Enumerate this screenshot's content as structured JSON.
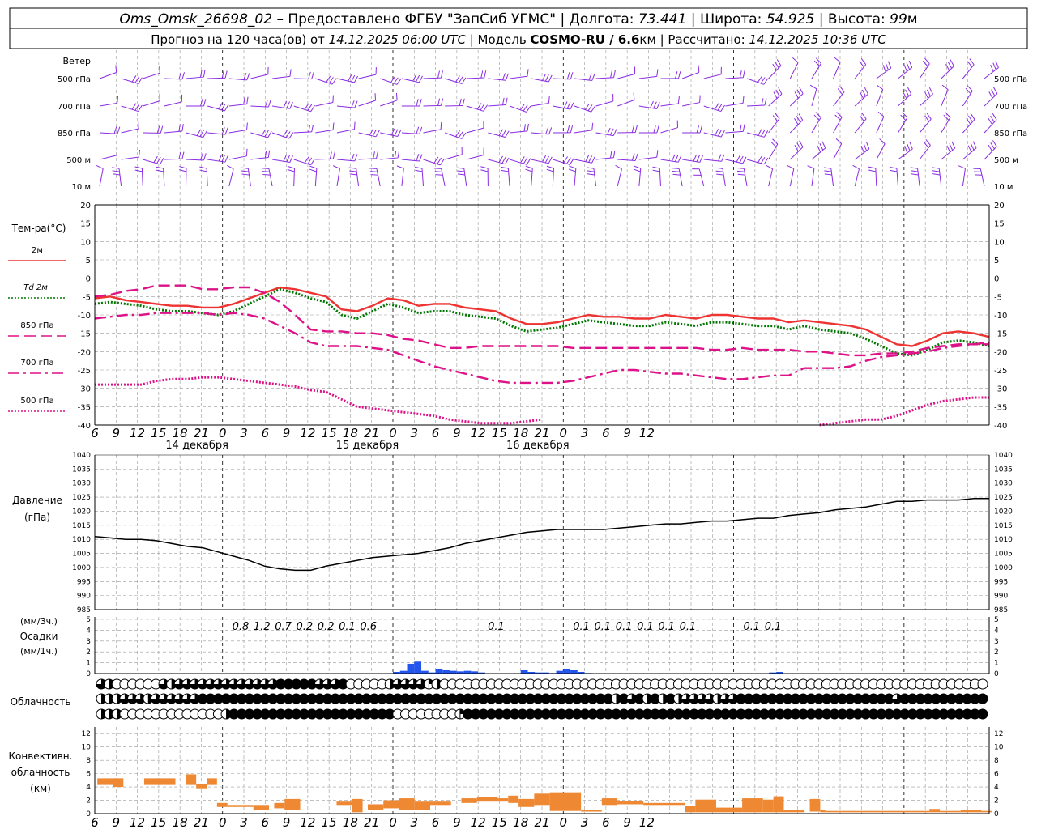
{
  "header": {
    "line1": [
      {
        "text": "Oms_Omsk_26698_02",
        "style": "italic"
      },
      {
        "text": " – Предоставлено ФГБУ \"ЗапСиб УГМС\" | Долгота: ",
        "style": "normal"
      },
      {
        "text": "73.441",
        "style": "italic"
      },
      {
        "text": " | Широта: ",
        "style": "normal"
      },
      {
        "text": "54.925",
        "style": "italic"
      },
      {
        "text": " | Высота: ",
        "style": "normal"
      },
      {
        "text": "99",
        "style": "italic"
      },
      {
        "text": "м",
        "style": "normal"
      }
    ],
    "line2": [
      {
        "text": "Прогноз на 120 часа(ов) от ",
        "style": "normal"
      },
      {
        "text": "14.12.2025 06:00 UTC",
        "style": "italic"
      },
      {
        "text": "  | Модель ",
        "style": "normal"
      },
      {
        "text": "COSMO-RU / 6.6",
        "style": "bold"
      },
      {
        "text": "км",
        "style": "normal"
      },
      {
        "text": " | Рассчитано: ",
        "style": "normal"
      },
      {
        "text": "14.12.2025 10:36 UTC",
        "style": "italic"
      }
    ]
  },
  "time_axis": {
    "hour_labels": [
      "6",
      "9",
      "12",
      "15",
      "18",
      "21",
      "0",
      "3",
      "6",
      "9",
      "12",
      "15",
      "18",
      "21",
      "0",
      "3",
      "6",
      "9",
      "12",
      "15",
      "18",
      "21",
      "0",
      "3",
      "6",
      "9",
      "12"
    ],
    "day_labels": [
      "14 декабря",
      "15 декабря",
      "16 декабря"
    ],
    "colors": {
      "grid": "#999999",
      "frame": "#000000"
    }
  },
  "wind": {
    "title": "Ветер",
    "levels": [
      "500 гПа",
      "700 гПа",
      "850 гПа",
      "500 м",
      "10 м"
    ],
    "color": "#8a2be2"
  },
  "chart_data": [
    {
      "type": "line",
      "title": "Тем-ра(°C)",
      "ylim": [
        -40,
        20
      ],
      "yticks": [
        "20",
        "15",
        "10",
        "5",
        "0",
        "-5",
        "-10",
        "-15",
        "-20",
        "-25",
        "-30",
        "-35",
        "-40"
      ],
      "series": [
        {
          "name": "2м",
          "color": "#ee3333",
          "dash": "solid",
          "values": [
            -5.5,
            -5,
            -6,
            -6.5,
            -7,
            -7.5,
            -7.5,
            -8,
            -8,
            -7,
            -5.5,
            -4,
            -2.5,
            -3,
            -4,
            -5,
            -8.5,
            -9,
            -7.5,
            -5.5,
            -6,
            -7.5,
            -7,
            -7,
            -8,
            -8.5,
            -9,
            -11,
            -12.5,
            -12.5,
            -12,
            -11,
            -10,
            -10.5,
            -10.5,
            -11,
            -11,
            -10,
            -10.5,
            -11,
            -10,
            -10,
            -10.5,
            -11,
            -11,
            -12,
            -11.5,
            -12,
            -12.5,
            -13,
            -14,
            -16,
            -18,
            -18.5,
            -17,
            -15,
            -14.5,
            -15,
            -16
          ]
        },
        {
          "name": "Td 2м",
          "color": "#007700",
          "dash": "dotted",
          "values": [
            -7,
            -6.5,
            -7,
            -7.5,
            -8.5,
            -9,
            -9,
            -9.5,
            -10,
            -9,
            -7,
            -5,
            -3,
            -4,
            -5.5,
            -6.5,
            -10,
            -11,
            -9,
            -7,
            -8,
            -9.5,
            -9,
            -9,
            -10,
            -10.5,
            -11,
            -13,
            -14.5,
            -14,
            -13.5,
            -12.5,
            -11.5,
            -12,
            -12.5,
            -13,
            -13,
            -12,
            -12.5,
            -13,
            -12,
            -12,
            -12.5,
            -13,
            -13,
            -14,
            -13,
            -14,
            -14.5,
            -15,
            -16.5,
            -18.5,
            -20.5,
            -21,
            -19.5,
            -17.5,
            -17,
            -17.5,
            -18.5
          ]
        },
        {
          "name": "850 гПа",
          "color": "#dd1188",
          "dash": "longdash",
          "values": [
            -5,
            -4.5,
            -3.5,
            -3,
            -2,
            -2,
            -2,
            -3,
            -3,
            -2.5,
            -2.5,
            -4,
            -6.5,
            -10,
            -14,
            -14.5,
            -14.5,
            -15,
            -15,
            -15.5,
            -16.5,
            -17,
            -18,
            -19,
            -19,
            -18.5,
            -18.5,
            -18.5,
            -18.5,
            -18.5,
            -18.5,
            -19,
            -19,
            -19,
            -19,
            -19,
            -19,
            -19,
            -19,
            -19,
            -19.5,
            -19.5,
            -19,
            -19.5,
            -19.5,
            -19.5,
            -20,
            -20,
            -20.5,
            -21,
            -21,
            -20.5,
            -20.5,
            -20,
            -19,
            -18.5,
            -18,
            -18,
            -18
          ]
        },
        {
          "name": "700 гПа",
          "color": "#dd1188",
          "dash": "dashdot",
          "values": [
            -11,
            -10.5,
            -10,
            -10,
            -9.5,
            -9.5,
            -9.5,
            -9.5,
            -10,
            -9.5,
            -10,
            -11,
            -13,
            -15,
            -17.5,
            -18.5,
            -18.5,
            -18.5,
            -19,
            -19.5,
            -21,
            -22.5,
            -24,
            -25,
            -26,
            -27,
            -28,
            -28.5,
            -28.5,
            -28.5,
            -28.5,
            -28,
            -27,
            -26,
            -25,
            -25,
            -25.5,
            -26,
            -26,
            -26.5,
            -27,
            -27.5,
            -27.5,
            -27,
            -26.5,
            -26.5,
            -24.5,
            -24.5,
            -24.5,
            -24,
            -22.5,
            -21.5,
            -21,
            -20.5,
            -20,
            -19,
            -18.5,
            -18,
            -17.5
          ]
        },
        {
          "name": "500 гПа",
          "color": "#dd1188",
          "dash": "dotted",
          "values": [
            -29,
            -29,
            -29,
            -29,
            -28,
            -27.5,
            -27.5,
            -27,
            -27,
            -27.5,
            -28,
            -28.5,
            -29,
            -29.5,
            -30.5,
            -31,
            -33,
            -35,
            -35.5,
            -36,
            -36.5,
            -37,
            -37.5,
            -38.5,
            -39,
            -39.5,
            -39.5,
            -39.5,
            -39,
            -38.5,
            null,
            null,
            null,
            null,
            null,
            null,
            null,
            null,
            null,
            null,
            null,
            null,
            null,
            null,
            null,
            null,
            null,
            -40,
            -39.5,
            -39,
            -38.5,
            -38.5,
            -37.5,
            -36,
            -34.5,
            -33.5,
            -33,
            -32.5,
            -32.5
          ]
        }
      ]
    },
    {
      "type": "line",
      "title": "Давление",
      "ylabel": "(гПа)",
      "ylim": [
        985,
        1040
      ],
      "yticks": [
        "1040",
        "1035",
        "1030",
        "1025",
        "1020",
        "1015",
        "1010",
        "1005",
        "1000",
        "995",
        "990",
        "985"
      ],
      "series": [
        {
          "color": "#000000",
          "values": [
            1011,
            1010.5,
            1010,
            1010,
            1009.5,
            1008.5,
            1007.5,
            1007,
            1005.5,
            1004,
            1002.5,
            1000.5,
            999.5,
            999,
            999,
            1000.5,
            1001.5,
            1002.5,
            1003.5,
            1004,
            1004.5,
            1005,
            1006,
            1007,
            1008.5,
            1009.5,
            1010.5,
            1011.5,
            1012.5,
            1013,
            1013.5,
            1013.5,
            1013.5,
            1013.5,
            1014,
            1014.5,
            1015,
            1015.5,
            1015.5,
            1016,
            1016.5,
            1016.5,
            1017,
            1017.5,
            1017.5,
            1018.5,
            1019,
            1019.5,
            1020.5,
            1021,
            1021.5,
            1022.5,
            1023.5,
            1023.5,
            1024,
            1024,
            1024,
            1024.5,
            1024.5
          ]
        }
      ]
    },
    {
      "type": "bar",
      "title": "Осадки",
      "ylabels": [
        "(мм/3ч.)",
        "(мм/1ч.)"
      ],
      "ylim": [
        0,
        5
      ],
      "yticks": [
        "5",
        "4",
        "3",
        "2",
        "1",
        "0"
      ],
      "color": "#2255ee",
      "hourly": [
        0,
        0,
        0,
        0,
        0,
        0,
        0,
        0,
        0,
        0,
        0,
        0,
        0,
        0,
        0,
        0,
        0,
        0,
        0,
        0,
        0,
        0,
        0,
        0,
        0,
        0,
        0,
        0,
        0,
        0,
        0,
        0,
        0,
        0,
        0,
        0,
        0,
        0,
        0,
        0,
        0,
        0,
        0.15,
        0.25,
        0.9,
        1.1,
        0.25,
        0.1,
        0.45,
        0.3,
        0.25,
        0.2,
        0.25,
        0.2,
        0.1,
        0,
        0,
        0,
        0,
        0,
        0.3,
        0.15,
        0.1,
        0.1,
        0.05,
        0.25,
        0.45,
        0.3,
        0.15,
        0.05,
        0,
        0,
        0,
        0,
        0,
        0,
        0,
        0,
        0,
        0,
        0,
        0,
        0,
        0,
        0,
        0,
        0,
        0,
        0,
        0,
        0,
        0,
        0,
        0,
        0,
        0.1,
        0.15,
        0,
        0,
        0,
        0,
        0,
        0,
        0,
        0,
        0,
        0,
        0,
        0,
        0,
        0,
        0,
        0,
        0,
        0,
        0,
        0,
        0,
        0,
        0
      ],
      "totals_3h": [
        {
          "hour": 21,
          "value": "0.8"
        },
        {
          "hour": 24,
          "value": "1.2"
        },
        {
          "hour": 27,
          "value": "0.7"
        },
        {
          "hour": 30,
          "value": "0.2"
        },
        {
          "hour": 33,
          "value": "0.2"
        },
        {
          "hour": 36,
          "value": "0.1"
        },
        {
          "hour": 39,
          "value": "0.6"
        },
        {
          "hour": 57,
          "value": "0.1"
        },
        {
          "hour": 69,
          "value": "0.1"
        },
        {
          "hour": 72,
          "value": "0.1"
        },
        {
          "hour": 75,
          "value": "0.1"
        },
        {
          "hour": 78,
          "value": "0.1"
        },
        {
          "hour": 81,
          "value": "0.1"
        },
        {
          "hour": 84,
          "value": "0.1"
        },
        {
          "hour": 93,
          "value": "0.1"
        },
        {
          "hour": 96,
          "value": "0.1"
        }
      ]
    },
    {
      "type": "table",
      "title": "Облачность",
      "cover_scale": "0–4 (quarters)",
      "rows": [
        "3,2,0,0,0,0,0,0,3,2,3,3,3,3,3,3,3,3,3,3,3,3,3,4,4,4,4,4,3,3,3,4,0,0,0,0,0,2,3,3,3,3,1,2,0,0,0,0,0,0,0,0,0,0,0,0,0,0,0,0,0,0,0,0,0,0,0,0,0,0,0,0,0,0,0,0,0,0,0,0,0,0,0,0,0,0,0,0,0,0,0,0,0,0,0,0,0,0,0,0,0,0,0,0,0,0,0,0,0,0,0,0,0,0",
        "2,2,2,3,3,3,2,3,3,3,3,3,3,4,4,4,4,4,4,4,4,4,4,4,4,4,4,4,4,4,4,4,4,4,4,4,4,4,4,4,4,4,4,4,4,4,4,4,4,4,4,4,4,4,4,4,4,4,4,4,4,4,4,4,4,4,2,4,3,4,2,4,2,4,2,3,3,3,3,2,3,3,4,4,4,4,4,4,4,4,4,4,4,4,4,4,4,4,4,4,4,4,3,4,4,4,4,4,4,4,4,4,4,4",
        "2,2,2,0,0,0,0,0,0,0,0,0,0,0,0,0,2,4,4,4,4,4,4,4,4,4,4,4,4,4,4,4,4,4,4,4,4,4,0,0,0,0,0,0,0,0,1,4,4,4,4,4,4,4,4,4,4,4,4,4,4,4,4,4,4,4,4,4,4,4,4,4,4,4,4,4,4,4,4,4,4,4,4,4,4,4,4,4,4,4,4,4,4,4,4,4,4,4,4,4,4,4,4,4,4,4,4,4,4,4,4,4,4,4"
      ]
    },
    {
      "type": "bar",
      "title": "Конвективн. облачность",
      "ylabel": "(км)",
      "ylim": [
        0,
        13
      ],
      "yticks": [
        "12",
        "10",
        "8",
        "6",
        "4",
        "2",
        "0"
      ],
      "color": "#ee8833",
      "bars": [
        {
          "x0": 0.5,
          "x1": 3.5,
          "y0": 4.3,
          "y1": 5.3
        },
        {
          "x0": 3.5,
          "x1": 5.5,
          "y0": 4.0,
          "y1": 5.3
        },
        {
          "x0": 9.5,
          "x1": 15.5,
          "y0": 4.3,
          "y1": 5.3
        },
        {
          "x0": 17.5,
          "x1": 19.5,
          "y0": 4.3,
          "y1": 5.9
        },
        {
          "x0": 19.5,
          "x1": 21.5,
          "y0": 3.8,
          "y1": 4.5
        },
        {
          "x0": 21.5,
          "x1": 23.5,
          "y0": 4.3,
          "y1": 5.3
        },
        {
          "x0": 23.5,
          "x1": 25.5,
          "y0": 1.0,
          "y1": 1.6
        },
        {
          "x0": 25.5,
          "x1": 30.5,
          "y0": 1.0,
          "y1": 1.3
        },
        {
          "x0": 30.5,
          "x1": 33.5,
          "y0": 0.5,
          "y1": 1.3
        },
        {
          "x0": 34.5,
          "x1": 36.5,
          "y0": 0.8,
          "y1": 1.6
        },
        {
          "x0": 36.5,
          "x1": 39.5,
          "y0": 0.5,
          "y1": 2.2
        },
        {
          "x0": 46.5,
          "x1": 49.5,
          "y0": 1.3,
          "y1": 1.8
        },
        {
          "x0": 49.5,
          "x1": 51.5,
          "y0": 0.2,
          "y1": 2.2
        },
        {
          "x0": 52.5,
          "x1": 55.5,
          "y0": 0.5,
          "y1": 1.4
        },
        {
          "x0": 55.5,
          "x1": 58.5,
          "y0": 0.8,
          "y1": 2.0
        },
        {
          "x0": 58.5,
          "x1": 61.5,
          "y0": 0.5,
          "y1": 2.3
        },
        {
          "x0": 61.5,
          "x1": 64.5,
          "y0": 0.6,
          "y1": 1.8
        },
        {
          "x0": 64.5,
          "x1": 68.5,
          "y0": 1.3,
          "y1": 1.8
        },
        {
          "x0": 70.5,
          "x1": 73.5,
          "y0": 1.6,
          "y1": 2.3
        },
        {
          "x0": 73.5,
          "x1": 77.5,
          "y0": 1.8,
          "y1": 2.5
        },
        {
          "x0": 77.5,
          "x1": 79.5,
          "y0": 1.8,
          "y1": 2.3
        },
        {
          "x0": 79.5,
          "x1": 81.5,
          "y0": 1.6,
          "y1": 2.7
        },
        {
          "x0": 81.5,
          "x1": 84.5,
          "y0": 1.0,
          "y1": 2.2
        },
        {
          "x0": 84.5,
          "x1": 87.5,
          "y0": 1.3,
          "y1": 3.0
        },
        {
          "x0": 87.5,
          "x1": 93.5,
          "y0": 0.4,
          "y1": 3.2
        },
        {
          "x0": 93.5,
          "x1": 97.5,
          "y0": 0.3,
          "y1": 0.5
        },
        {
          "x0": 97.5,
          "x1": 100.5,
          "y0": 1.3,
          "y1": 2.3
        },
        {
          "x0": 100.5,
          "x1": 105.5,
          "y0": 1.4,
          "y1": 1.9
        },
        {
          "x0": 105.5,
          "x1": 113.5,
          "y0": 1.3,
          "y1": 1.6
        },
        {
          "x0": 113.5,
          "x1": 115.5,
          "y0": 0.2,
          "y1": 1.1
        },
        {
          "x0": 115.5,
          "x1": 119.5,
          "y0": 0.2,
          "y1": 2.1
        },
        {
          "x0": 119.5,
          "x1": 124.5,
          "y0": 0.2,
          "y1": 0.9
        },
        {
          "x0": 124.5,
          "x1": 128.5,
          "y0": 0.2,
          "y1": 2.3
        },
        {
          "x0": 128.5,
          "x1": 130.5,
          "y0": 0.2,
          "y1": 2.1
        },
        {
          "x0": 130.5,
          "x1": 132.5,
          "y0": 0.2,
          "y1": 2.6
        },
        {
          "x0": 132.5,
          "x1": 136.5,
          "y0": 0.2,
          "y1": 0.6
        },
        {
          "x0": 137.5,
          "x1": 139.5,
          "y0": 0.3,
          "y1": 2.2
        },
        {
          "x0": 139.5,
          "x1": 140.5,
          "y0": 0.2,
          "y1": 0.6
        },
        {
          "x0": 140.5,
          "x1": 160.5,
          "y0": 0.2,
          "y1": 0.4
        },
        {
          "x0": 160.5,
          "x1": 162.5,
          "y0": 0.2,
          "y1": 0.7
        },
        {
          "x0": 162.5,
          "x1": 166.5,
          "y0": 0.2,
          "y1": 0.4
        },
        {
          "x0": 166.5,
          "x1": 170.5,
          "y0": 0.2,
          "y1": 0.6
        },
        {
          "x0": 170.5,
          "x1": 172.5,
          "y0": 0.2,
          "y1": 0.4
        }
      ]
    }
  ]
}
